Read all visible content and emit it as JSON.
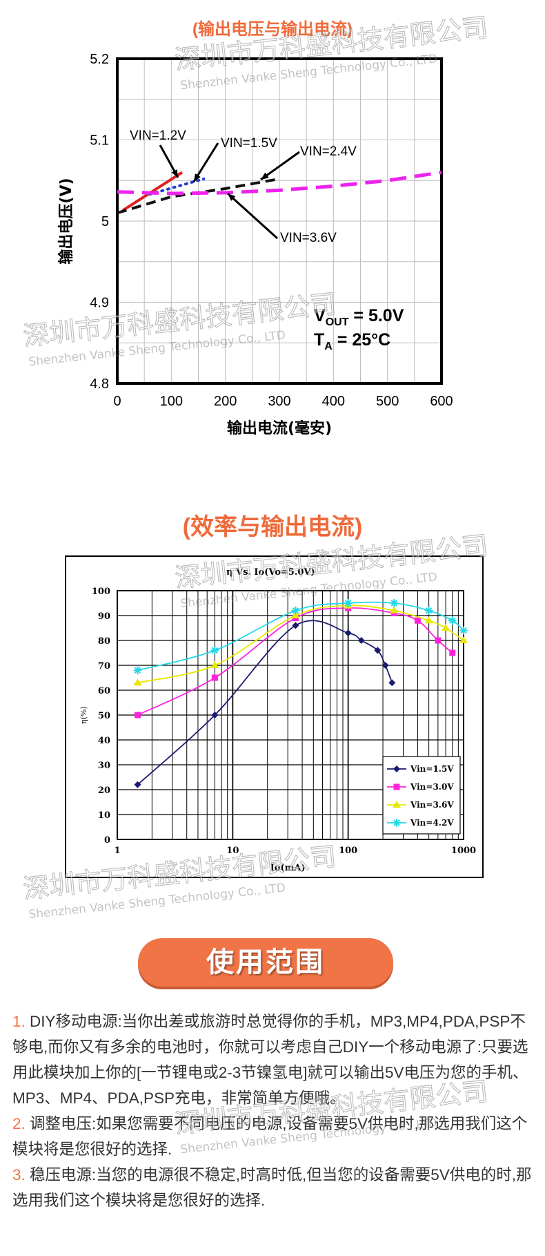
{
  "watermark": {
    "cn": "深圳市万科盛科技有限公司",
    "en": "Shenzhen Vanke Sheng Technology Co., LTD"
  },
  "chart_data": [
    {
      "type": "line",
      "title": "(输出电压与输出电流)",
      "xlabel": "输出电流(毫安)",
      "ylabel": "输出电压(V)",
      "xlim": [
        0,
        600
      ],
      "ylim": [
        4.8,
        5.2
      ],
      "x_ticks": [
        "0",
        "100",
        "200",
        "300",
        "400",
        "500",
        "600"
      ],
      "y_ticks": [
        "4.8",
        "4.9",
        "5",
        "5.1",
        "5.2"
      ],
      "grid": true,
      "conditions": {
        "vout": "V",
        "vout_sub": "OUT",
        "vout_val": " = 5.0V",
        "ta": "T",
        "ta_sub": "A",
        "ta_val": " = 25°C"
      },
      "series": [
        {
          "name": "VIN=1.2V",
          "color": "#e02020",
          "dash": "solid",
          "x": [
            10,
            120
          ],
          "y": [
            5.013,
            5.06
          ]
        },
        {
          "name": "VIN=1.5V",
          "color": "#1f3fd0",
          "dash": "dot",
          "x": [
            60,
            160
          ],
          "y": [
            5.033,
            5.052
          ]
        },
        {
          "name": "VIN=2.4V",
          "color": "#111111",
          "dash": "dash",
          "x": [
            0,
            100,
            200,
            300
          ],
          "y": [
            5.01,
            5.03,
            5.04,
            5.052
          ]
        },
        {
          "name": "VIN=3.6V",
          "color": "#ee22ee",
          "dash": "longdash",
          "x": [
            0,
            100,
            200,
            300,
            400,
            500,
            600
          ],
          "y": [
            5.036,
            5.034,
            5.035,
            5.038,
            5.043,
            5.05,
            5.06
          ]
        }
      ],
      "labels": [
        {
          "text": "VIN=1.2V",
          "series": 0
        },
        {
          "text": "VIN=1.5V",
          "series": 1
        },
        {
          "text": "VIN=2.4V",
          "series": 2
        },
        {
          "text": "VIN=3.6V",
          "series": 3
        }
      ]
    },
    {
      "type": "line",
      "title": "(效率与输出电流)",
      "caption": "η Vs. Io(Vo=5.0V)",
      "xlabel": "Io(mA)",
      "ylabel": "η(%)",
      "x_scale": "log",
      "xlim": [
        1,
        1000
      ],
      "ylim": [
        0,
        100
      ],
      "x_ticks": [
        "1",
        "10",
        "100",
        "1000"
      ],
      "y_ticks": [
        "0",
        "10",
        "20",
        "30",
        "40",
        "50",
        "60",
        "70",
        "80",
        "90",
        "100"
      ],
      "grid": true,
      "legend": "bottom-right",
      "series": [
        {
          "name": "Vin=1.5V",
          "color": "#1a1a6e",
          "marker": "diamond",
          "x": [
            1.5,
            7,
            35,
            100,
            130,
            180,
            210,
            240
          ],
          "y": [
            22,
            50,
            86,
            83,
            80,
            76,
            70,
            63
          ]
        },
        {
          "name": "Vin=3.0V",
          "color": "#ff22dd",
          "marker": "square",
          "x": [
            1.5,
            7,
            35,
            100,
            250,
            400,
            600,
            800
          ],
          "y": [
            50,
            65,
            89,
            93,
            91,
            88,
            80,
            75
          ]
        },
        {
          "name": "Vin=3.6V",
          "color": "#e8e800",
          "marker": "triangle",
          "x": [
            1.5,
            7,
            35,
            100,
            250,
            500,
            700,
            1000
          ],
          "y": [
            63,
            70,
            90,
            94,
            92,
            88,
            85,
            80
          ]
        },
        {
          "name": "Vin=4.2V",
          "color": "#22d8e8",
          "marker": "star",
          "x": [
            1.5,
            7,
            35,
            100,
            250,
            500,
            800,
            1000
          ],
          "y": [
            68,
            76,
            92,
            95,
            95,
            92,
            88,
            84
          ]
        }
      ]
    }
  ],
  "section": {
    "title": "使用范围"
  },
  "usage": [
    {
      "num": "1.",
      "text": " DIY移动电源:当你出差或旅游时总觉得你的手机，MP3,MP4,PDA,PSP不够电,而你又有多余的电池时，你就可以考虑自己DIY一个移动电源了:只要选用此模块加上你的[一节锂电或2-3节镍氢电]就可以输出5V电压为您的手机、MP3、MP4、PDA,PSP充电，非常简单方便哦。"
    },
    {
      "num": "2.",
      "text": " 调整电压:如果您需要不同电压的电源,设备需要5V供电时,那选用我们这个模块将是您很好的选择."
    },
    {
      "num": "3.",
      "text": " 稳压电源:当您的电源很不稳定,时高时低,但当您的设备需要5V供电的时,那选用我们这个模块将是您很好的选择."
    }
  ]
}
